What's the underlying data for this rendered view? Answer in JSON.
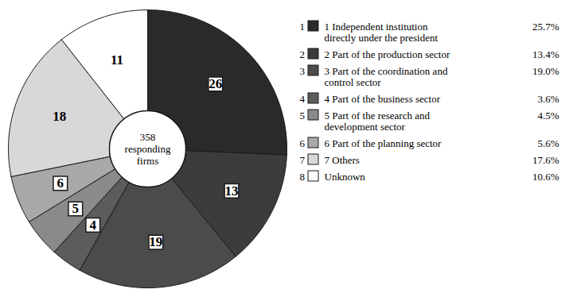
{
  "chart_data": {
    "type": "pie",
    "categories": [
      "1 Independent institution directly under the president",
      "2 Part of the production sector",
      "3 Part of the coordination and control sector",
      "4 Part of the business sector",
      "5 Part of the research and development sector",
      "6 Part of the planning sector",
      "7 Others",
      "Unknown"
    ],
    "values": [
      25.7,
      13.4,
      19.0,
      3.6,
      4.5,
      5.6,
      17.6,
      10.6
    ],
    "value_labels": [
      "26",
      "13",
      "19",
      "4",
      "5",
      "6",
      "18",
      "11"
    ],
    "legend_numbers": [
      1,
      2,
      3,
      4,
      5,
      6,
      7,
      8
    ],
    "legend_value_labels": [
      "25.7%",
      "13.4%",
      "19.0%",
      "3.6%",
      "4.5%",
      "5.6%",
      "17.6%",
      "10.6%"
    ],
    "center_label": [
      "358",
      "responding",
      "firms"
    ],
    "colors": [
      "#2a2a2a",
      "#3c3c3c",
      "#4b4b4b",
      "#5c5c5c",
      "#8a8a8a",
      "#a8a8a8",
      "#d8d8d8",
      "#ffffff"
    ],
    "data_labels": true,
    "legend": "right"
  }
}
